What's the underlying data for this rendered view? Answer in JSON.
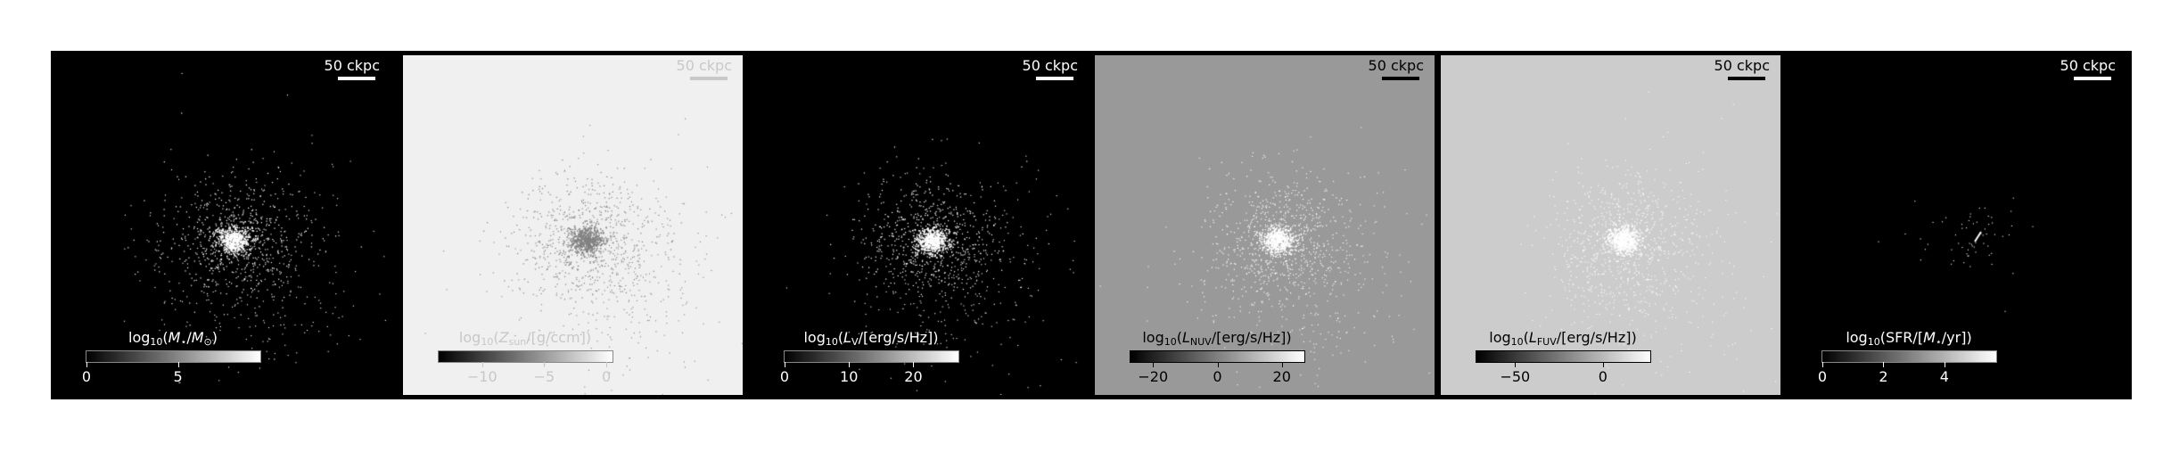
{
  "scale_bar_label": "50 ckpc",
  "panels": [
    {
      "id": "mass",
      "background": "#000000",
      "point_color": "#ffffff",
      "label_color": "#ffffff",
      "colorbar_label": {
        "prefix": "log",
        "base": "10",
        "open": "(",
        "symbol": "M",
        "symbol_sub": "⋆",
        "rest": "/",
        "unit_symbol": "M",
        "unit_sub": "⊙",
        "close": ")"
      },
      "ticks": [
        {
          "value": 0,
          "label": "0"
        },
        {
          "value": 5,
          "label": "5"
        }
      ],
      "range": [
        0,
        9.5
      ]
    },
    {
      "id": "metallicity",
      "background": "#f0f0f0",
      "point_color": "#808080",
      "label_color": "#c8c8c8",
      "colorbar_label": {
        "prefix": "log",
        "base": "10",
        "open": "(",
        "symbol": "Z",
        "symbol_sub": "sun",
        "rest": "/[g/ccm])",
        "unit_symbol": "",
        "unit_sub": "",
        "close": ""
      },
      "ticks": [
        {
          "value": -10,
          "label": "−10"
        },
        {
          "value": -5,
          "label": "−5"
        },
        {
          "value": 0,
          "label": "0"
        }
      ],
      "range": [
        -13.5,
        0.5
      ]
    },
    {
      "id": "luminosity-v",
      "background": "#000000",
      "point_color": "#ffffff",
      "label_color": "#ffffff",
      "colorbar_label": {
        "prefix": "log",
        "base": "10",
        "open": "(",
        "symbol": "L",
        "symbol_sub": "V",
        "rest": "/[erg/s/Hz])",
        "unit_symbol": "",
        "unit_sub": "",
        "close": ""
      },
      "ticks": [
        {
          "value": 0,
          "label": "0"
        },
        {
          "value": 10,
          "label": "10"
        },
        {
          "value": 20,
          "label": "20"
        }
      ],
      "range": [
        0,
        27
      ]
    },
    {
      "id": "luminosity-nuv",
      "background": "#999999",
      "point_color": "#ffffff",
      "label_color": "#000000",
      "colorbar_label": {
        "prefix": "log",
        "base": "10",
        "open": "(",
        "symbol": "L",
        "symbol_sub": "NUV",
        "rest": "/[erg/s/Hz])",
        "unit_symbol": "",
        "unit_sub": "",
        "close": ""
      },
      "ticks": [
        {
          "value": -20,
          "label": "−20"
        },
        {
          "value": 0,
          "label": "0"
        },
        {
          "value": 20,
          "label": "20"
        }
      ],
      "range": [
        -27,
        27
      ]
    },
    {
      "id": "luminosity-fuv",
      "background": "#cccccc",
      "point_color": "#ffffff",
      "label_color": "#000000",
      "colorbar_label": {
        "prefix": "log",
        "base": "10",
        "open": "(",
        "symbol": "L",
        "symbol_sub": "FUV",
        "rest": "/[erg/s/Hz])",
        "unit_symbol": "",
        "unit_sub": "",
        "close": ""
      },
      "ticks": [
        {
          "value": -50,
          "label": "−50"
        },
        {
          "value": 0,
          "label": "0"
        }
      ],
      "range": [
        -72,
        27
      ]
    },
    {
      "id": "sfr",
      "background": "#000000",
      "point_color": "#ffffff",
      "label_color": "#ffffff",
      "colorbar_label": {
        "prefix": "log",
        "base": "10",
        "open": "(SFR/[",
        "symbol": "M",
        "symbol_sub": "⋆",
        "rest": "/yr])",
        "unit_symbol": "",
        "unit_sub": "",
        "close": ""
      },
      "ticks": [
        {
          "value": 0,
          "label": "0"
        },
        {
          "value": 2,
          "label": "2"
        },
        {
          "value": 4,
          "label": "4"
        }
      ],
      "range": [
        0,
        5.7
      ]
    }
  ]
}
